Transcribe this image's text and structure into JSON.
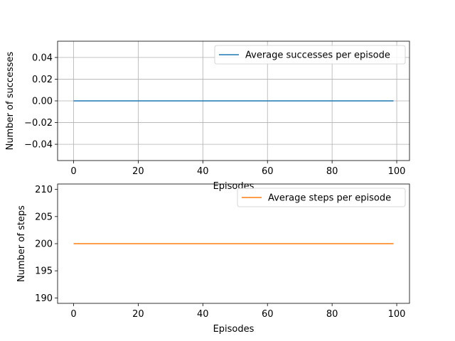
{
  "chart_data": [
    {
      "type": "line",
      "xlabel": "Episodes",
      "ylabel": "Number of successes",
      "xlim": [
        -4.95,
        103.95
      ],
      "ylim": [
        -0.055,
        0.055
      ],
      "xticks": [
        0,
        20,
        40,
        60,
        80,
        100
      ],
      "yticks": [
        -0.04,
        -0.02,
        0.0,
        0.02,
        0.04
      ],
      "xtick_labels": [
        "0",
        "20",
        "40",
        "60",
        "80",
        "100"
      ],
      "ytick_labels": [
        "−0.04",
        "−0.02",
        "0.00",
        "0.02",
        "0.04"
      ],
      "grid": true,
      "legend_position": "upper right",
      "series": [
        {
          "name": "Average successes per episode",
          "color": "#1f77b4",
          "x": [
            0,
            99
          ],
          "y": [
            0,
            0
          ]
        }
      ]
    },
    {
      "type": "line",
      "xlabel": "Episodes",
      "ylabel": "Number of steps",
      "xlim": [
        -4.95,
        103.95
      ],
      "ylim": [
        189,
        211
      ],
      "xticks": [
        0,
        20,
        40,
        60,
        80,
        100
      ],
      "yticks": [
        190,
        195,
        200,
        205,
        210
      ],
      "xtick_labels": [
        "0",
        "20",
        "40",
        "60",
        "80",
        "100"
      ],
      "ytick_labels": [
        "190",
        "195",
        "200",
        "205",
        "210"
      ],
      "grid": false,
      "legend_position": "upper right",
      "series": [
        {
          "name": "Average steps per episode",
          "color": "#ff7f0e",
          "x": [
            0,
            99
          ],
          "y": [
            200,
            200
          ]
        }
      ]
    }
  ]
}
